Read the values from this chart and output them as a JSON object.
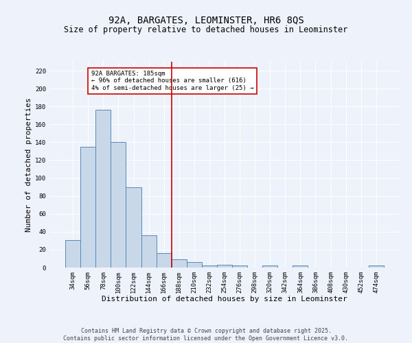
{
  "title": "92A, BARGATES, LEOMINSTER, HR6 8QS",
  "subtitle": "Size of property relative to detached houses in Leominster",
  "xlabel": "Distribution of detached houses by size in Leominster",
  "ylabel": "Number of detached properties",
  "footer_line1": "Contains HM Land Registry data © Crown copyright and database right 2025.",
  "footer_line2": "Contains public sector information licensed under the Open Government Licence v3.0.",
  "categories": [
    "34sqm",
    "56sqm",
    "78sqm",
    "100sqm",
    "122sqm",
    "144sqm",
    "166sqm",
    "188sqm",
    "210sqm",
    "232sqm",
    "254sqm",
    "276sqm",
    "298sqm",
    "320sqm",
    "342sqm",
    "364sqm",
    "386sqm",
    "408sqm",
    "430sqm",
    "452sqm",
    "474sqm"
  ],
  "values": [
    31,
    135,
    176,
    140,
    90,
    36,
    16,
    9,
    6,
    2,
    3,
    2,
    0,
    2,
    0,
    2,
    0,
    0,
    0,
    0,
    2
  ],
  "bar_color": "#c8d8e8",
  "bar_edge_color": "#5588bb",
  "vline_position": 6.5,
  "vline_color": "#cc0000",
  "annotation_text": "92A BARGATES: 185sqm\n← 96% of detached houses are smaller (616)\n4% of semi-detached houses are larger (25) →",
  "annotation_box_color": "#ffffff",
  "annotation_box_edge_color": "#cc0000",
  "ylim": [
    0,
    230
  ],
  "yticks": [
    0,
    20,
    40,
    60,
    80,
    100,
    120,
    140,
    160,
    180,
    200,
    220
  ],
  "background_color": "#eef2fb",
  "grid_color": "#ffffff",
  "title_fontsize": 10,
  "subtitle_fontsize": 8.5,
  "label_fontsize": 8,
  "tick_fontsize": 6.5,
  "footer_fontsize": 6
}
